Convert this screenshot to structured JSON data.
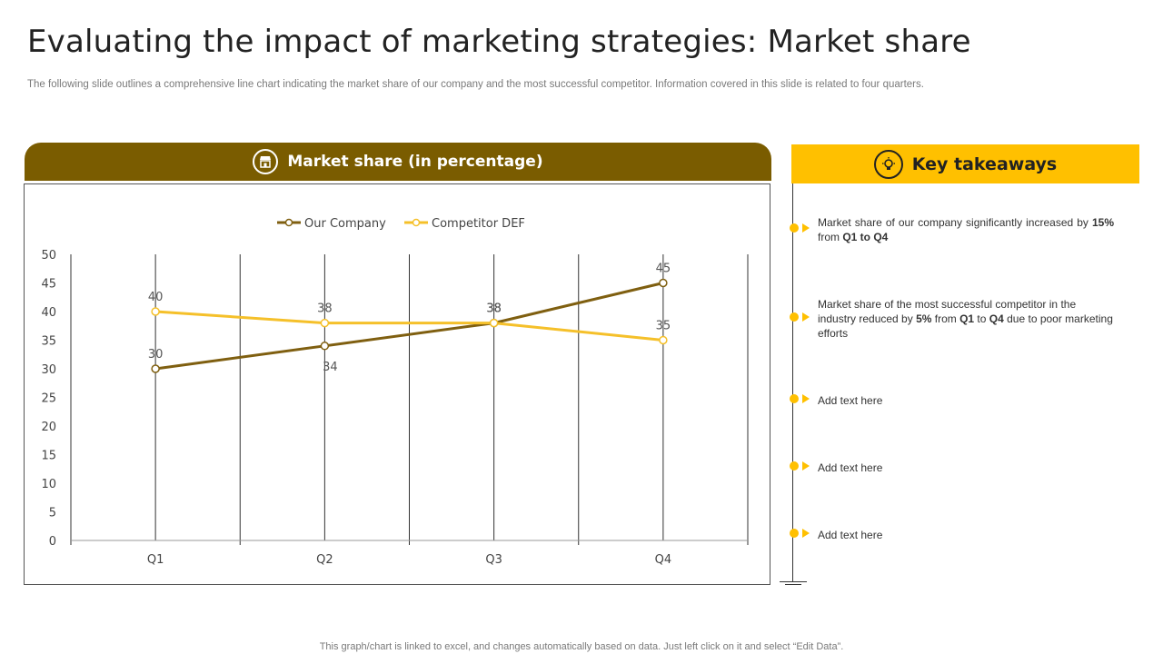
{
  "slide": {
    "title": "Evaluating the impact of marketing strategies: Market share",
    "subtitle": "The following slide outlines a comprehensive line chart indicating the market share of our company and the most successful competitor. Information covered in this slide is related to four quarters.",
    "footer": "This graph/chart is linked to excel,  and changes automatically based on data. Just left click on it and select “Edit Data”."
  },
  "chart_panel": {
    "header": "Market share (in percentage)",
    "icon": "store-icon"
  },
  "takeaways": {
    "header": "Key takeaways",
    "icon": "lightbulb-icon",
    "items": [
      {
        "parts": [
          "Market share of our company significantly increased by ",
          "15%",
          " from ",
          "Q1 to Q4",
          ""
        ]
      },
      {
        "parts": [
          "Market share of the most successful competitor in the industry reduced by ",
          "5%",
          " from ",
          "Q1",
          " to ",
          "Q4",
          " due to poor marketing efforts"
        ]
      },
      {
        "parts": [
          "Add text here"
        ]
      },
      {
        "parts": [
          "Add text here"
        ]
      },
      {
        "parts": [
          "Add text here"
        ]
      }
    ]
  },
  "colors": {
    "brown": "#7a5c00",
    "gold": "#ffc000",
    "line_company": "#7f5f10",
    "line_competitor": "#f5c02a"
  },
  "chart_data": {
    "type": "line",
    "title": "Market share (in percentage)",
    "categories": [
      "Q1",
      "Q2",
      "Q3",
      "Q4"
    ],
    "series": [
      {
        "name": "Our Company",
        "values": [
          30,
          34,
          38,
          45
        ]
      },
      {
        "name": "Competitor DEF",
        "values": [
          40,
          38,
          38,
          35
        ]
      }
    ],
    "ylim": [
      0,
      50
    ],
    "yticks": [
      0,
      5,
      10,
      15,
      20,
      25,
      30,
      35,
      40,
      45,
      50
    ],
    "legend_position": "top-center",
    "xlabel": "",
    "ylabel": ""
  }
}
